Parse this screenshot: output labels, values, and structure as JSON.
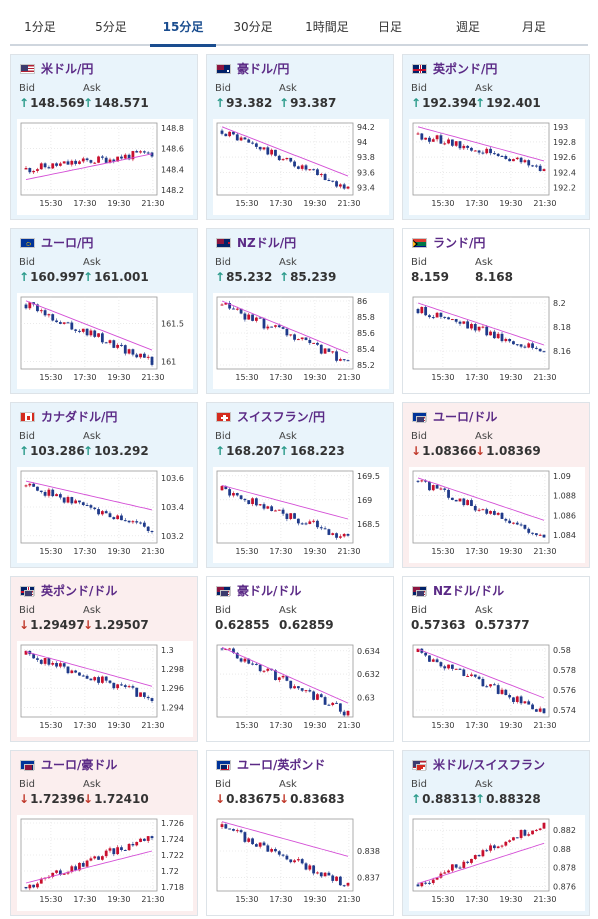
{
  "tabs": [
    {
      "label": "1分足",
      "active": false
    },
    {
      "label": "5分足",
      "active": false
    },
    {
      "label": "15分足",
      "active": true
    },
    {
      "label": "30分足",
      "active": false
    },
    {
      "label": "1時間足",
      "active": false
    },
    {
      "label": "日足",
      "active": false
    },
    {
      "label": "週足",
      "active": false
    },
    {
      "label": "月足",
      "active": false
    }
  ],
  "bid_label": "Bid",
  "ask_label": "Ask",
  "colors": {
    "up_candle": "#c8102e",
    "down_candle": "#1f3a8a",
    "ma": "#d44fd6",
    "up_arrow": "#2a9a8a",
    "down_arrow": "#c0392b",
    "active_tab": "#1a4d8f",
    "pair_text": "#5b2a86"
  },
  "pairs": [
    {
      "name": "米ドル/円",
      "flag": "us",
      "trend": "up",
      "bid": "148.569",
      "ask": "148.571",
      "bid_dir": "up",
      "ask_dir": "up",
      "chart_data": {
        "type": "candlestick",
        "x_ticks": [
          "15:30",
          "17:30",
          "19:30",
          "21:30"
        ],
        "y_ticks": [
          "148.2",
          "148.4",
          "148.6",
          "148.8"
        ],
        "ylim": [
          148.15,
          148.85
        ],
        "start": 148.4,
        "end": 148.56,
        "ma_start": 148.3,
        "ma_end": 148.55
      }
    },
    {
      "name": "豪ドル/円",
      "flag": "au",
      "trend": "up",
      "bid": "93.382",
      "ask": "93.387",
      "bid_dir": "up",
      "ask_dir": "up",
      "chart_data": {
        "type": "candlestick",
        "x_ticks": [
          "15:30",
          "17:30",
          "19:30",
          "21:30"
        ],
        "y_ticks": [
          "93.4",
          "93.6",
          "93.8",
          "94",
          "94.2"
        ],
        "ylim": [
          93.3,
          94.25
        ],
        "start": 94.15,
        "end": 93.38,
        "ma_start": 94.2,
        "ma_end": 93.55
      }
    },
    {
      "name": "英ポンド/円",
      "flag": "uk",
      "trend": "up",
      "bid": "192.394",
      "ask": "192.401",
      "bid_dir": "up",
      "ask_dir": "up",
      "chart_data": {
        "type": "candlestick",
        "x_ticks": [
          "15:30",
          "17:30",
          "19:30",
          "21:30"
        ],
        "y_ticks": [
          "192.2",
          "192.4",
          "192.6",
          "192.8",
          "193"
        ],
        "ylim": [
          192.1,
          193.05
        ],
        "start": 192.9,
        "end": 192.45,
        "ma_start": 193.0,
        "ma_end": 192.55
      }
    },
    {
      "name": "ユーロ/円",
      "flag": "eu",
      "trend": "up",
      "bid": "160.997",
      "ask": "161.001",
      "bid_dir": "up",
      "ask_dir": "up",
      "chart_data": {
        "type": "candlestick",
        "x_ticks": [
          "15:30",
          "17:30",
          "19:30",
          "21:30"
        ],
        "y_ticks": [
          "161",
          "161.5"
        ],
        "ylim": [
          160.9,
          161.85
        ],
        "start": 161.75,
        "end": 161.0,
        "ma_start": 161.8,
        "ma_end": 161.15
      }
    },
    {
      "name": "NZドル/円",
      "flag": "nz",
      "trend": "up",
      "bid": "85.232",
      "ask": "85.239",
      "bid_dir": "up",
      "ask_dir": "up",
      "chart_data": {
        "type": "candlestick",
        "x_ticks": [
          "15:30",
          "17:30",
          "19:30",
          "21:30"
        ],
        "y_ticks": [
          "85.2",
          "85.4",
          "85.6",
          "85.8",
          "86"
        ],
        "ylim": [
          85.15,
          86.05
        ],
        "start": 85.95,
        "end": 85.23,
        "ma_start": 86.0,
        "ma_end": 85.35
      }
    },
    {
      "name": "ランド/円",
      "flag": "za",
      "trend": "flat",
      "bid": "8.159",
      "ask": "8.168",
      "bid_dir": "none",
      "ask_dir": "none",
      "chart_data": {
        "type": "candlestick",
        "x_ticks": [
          "15:30",
          "17:30",
          "19:30",
          "21:30"
        ],
        "y_ticks": [
          "8.16",
          "8.18",
          "8.2"
        ],
        "ylim": [
          8.145,
          8.205
        ],
        "start": 8.195,
        "end": 8.16,
        "ma_start": 8.2,
        "ma_end": 8.165
      }
    },
    {
      "name": "カナダドル/円",
      "flag": "ca",
      "trend": "up",
      "bid": "103.286",
      "ask": "103.292",
      "bid_dir": "up",
      "ask_dir": "up",
      "chart_data": {
        "type": "candlestick",
        "x_ticks": [
          "15:30",
          "17:30",
          "19:30",
          "21:30"
        ],
        "y_ticks": [
          "103.2",
          "103.4",
          "103.6"
        ],
        "ylim": [
          103.15,
          103.65
        ],
        "start": 103.55,
        "end": 103.25,
        "ma_start": 103.58,
        "ma_end": 103.38
      }
    },
    {
      "name": "スイスフラン/円",
      "flag": "ch",
      "trend": "up",
      "bid": "168.207",
      "ask": "168.223",
      "bid_dir": "up",
      "ask_dir": "up",
      "chart_data": {
        "type": "candlestick",
        "x_ticks": [
          "15:30",
          "17:30",
          "19:30",
          "21:30"
        ],
        "y_ticks": [
          "168.5",
          "169",
          "169.5"
        ],
        "ylim": [
          168.1,
          169.6
        ],
        "start": 169.2,
        "end": 168.2,
        "ma_start": 169.3,
        "ma_end": 168.6
      }
    },
    {
      "name": "ユーロ/ドル",
      "flag": "eu",
      "flag2": "us",
      "trend": "down",
      "bid": "1.08366",
      "ask": "1.08369",
      "bid_dir": "down",
      "ask_dir": "down",
      "chart_data": {
        "type": "candlestick",
        "x_ticks": [
          "15:30",
          "17:30",
          "19:30",
          "21:30"
        ],
        "y_ticks": [
          "1.084",
          "1.086",
          "1.088",
          "1.09"
        ],
        "ylim": [
          1.0832,
          1.0905
        ],
        "start": 1.0895,
        "end": 1.0838,
        "ma_start": 1.0898,
        "ma_end": 1.0855
      }
    },
    {
      "name": "英ポンド/ドル",
      "flag": "uk",
      "flag2": "us",
      "trend": "down",
      "bid": "1.29497",
      "ask": "1.29507",
      "bid_dir": "down",
      "ask_dir": "down",
      "chart_data": {
        "type": "candlestick",
        "x_ticks": [
          "15:30",
          "17:30",
          "19:30",
          "21:30"
        ],
        "y_ticks": [
          "1.294",
          "1.296",
          "1.298",
          "1.3"
        ],
        "ylim": [
          1.293,
          1.3005
        ],
        "start": 1.2995,
        "end": 1.295,
        "ma_start": 1.2998,
        "ma_end": 1.2962
      }
    },
    {
      "name": "豪ドル/ドル",
      "flag": "au",
      "flag2": "us",
      "trend": "flat",
      "bid": "0.62855",
      "ask": "0.62859",
      "bid_dir": "none",
      "ask_dir": "none",
      "chart_data": {
        "type": "candlestick",
        "x_ticks": [
          "15:30",
          "17:30",
          "19:30",
          "21:30"
        ],
        "y_ticks": [
          "0.63",
          "0.632",
          "0.634"
        ],
        "ylim": [
          0.6283,
          0.6345
        ],
        "start": 0.6342,
        "end": 0.6286,
        "ma_start": 0.6343,
        "ma_end": 0.6295
      }
    },
    {
      "name": "NZドル/ドル",
      "flag": "nz",
      "flag2": "us",
      "trend": "flat",
      "bid": "0.57363",
      "ask": "0.57377",
      "bid_dir": "none",
      "ask_dir": "none",
      "chart_data": {
        "type": "candlestick",
        "x_ticks": [
          "15:30",
          "17:30",
          "19:30",
          "21:30"
        ],
        "y_ticks": [
          "0.574",
          "0.576",
          "0.578",
          "0.58"
        ],
        "ylim": [
          0.5733,
          0.5805
        ],
        "start": 0.5798,
        "end": 0.5737,
        "ma_start": 0.5801,
        "ma_end": 0.5752
      }
    },
    {
      "name": "ユーロ/豪ドル",
      "flag": "eu",
      "flag2": "au",
      "trend": "down",
      "bid": "1.72396",
      "ask": "1.72410",
      "bid_dir": "down",
      "ask_dir": "down",
      "chart_data": {
        "type": "candlestick",
        "x_ticks": [
          "15:30",
          "17:30",
          "19:30",
          "21:30"
        ],
        "y_ticks": [
          "1.718",
          "1.72",
          "1.722",
          "1.724",
          "1.726"
        ],
        "ylim": [
          1.7175,
          1.7265
        ],
        "start": 1.718,
        "end": 1.7245,
        "ma_start": 1.7185,
        "ma_end": 1.7225
      }
    },
    {
      "name": "ユーロ/英ポンド",
      "flag": "eu",
      "flag2": "uk",
      "trend": "flat",
      "bid": "0.83675",
      "ask": "0.83683",
      "bid_dir": "down",
      "ask_dir": "down",
      "chart_data": {
        "type": "candlestick",
        "x_ticks": [
          "15:30",
          "17:30",
          "19:30",
          "21:30"
        ],
        "y_ticks": [
          "0.837",
          "0.838"
        ],
        "ylim": [
          0.8365,
          0.8392
        ],
        "start": 0.8389,
        "end": 0.8367,
        "ma_start": 0.8391,
        "ma_end": 0.8378
      }
    },
    {
      "name": "米ドル/スイスフラン",
      "flag": "us",
      "flag2": "ch",
      "trend": "up",
      "bid": "0.88313",
      "ask": "0.88328",
      "bid_dir": "up",
      "ask_dir": "up",
      "chart_data": {
        "type": "candlestick",
        "x_ticks": [
          "15:30",
          "17:30",
          "19:30",
          "21:30"
        ],
        "y_ticks": [
          "0.876",
          "0.878",
          "0.88",
          "0.882"
        ],
        "ylim": [
          0.8755,
          0.8832
        ],
        "start": 0.8762,
        "end": 0.8828,
        "ma_start": 0.8763,
        "ma_end": 0.8806
      }
    }
  ]
}
